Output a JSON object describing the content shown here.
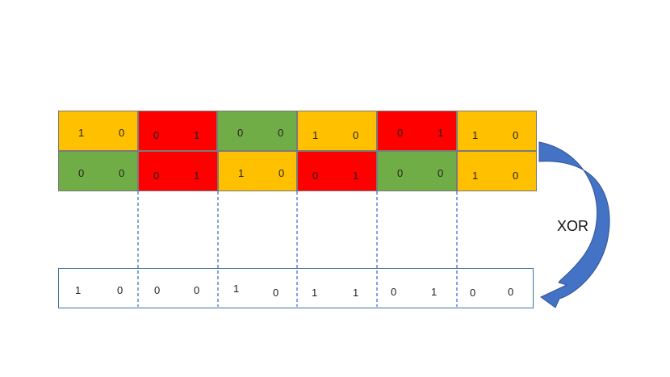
{
  "colors": {
    "yellow": "#ffc000",
    "red": "#ff0000",
    "green": "#70ad47",
    "arrow": "#4472c4",
    "dash": "#4472c4"
  },
  "row1": [
    {
      "bits": [
        "1",
        "0"
      ],
      "color": "yellow"
    },
    {
      "bits": [
        "0",
        "1"
      ],
      "color": "red"
    },
    {
      "bits": [
        "0",
        "0"
      ],
      "color": "green"
    },
    {
      "bits": [
        "1",
        "0"
      ],
      "color": "yellow"
    },
    {
      "bits": [
        "0",
        "1"
      ],
      "color": "red"
    },
    {
      "bits": [
        "1",
        "0"
      ],
      "color": "yellow"
    }
  ],
  "row2": [
    {
      "bits": [
        "0",
        "0"
      ],
      "color": "green"
    },
    {
      "bits": [
        "0",
        "1"
      ],
      "color": "red"
    },
    {
      "bits": [
        "1",
        "0"
      ],
      "color": "yellow"
    },
    {
      "bits": [
        "0",
        "1"
      ],
      "color": "red"
    },
    {
      "bits": [
        "0",
        "0"
      ],
      "color": "green"
    },
    {
      "bits": [
        "1",
        "0"
      ],
      "color": "yellow"
    }
  ],
  "result": [
    {
      "bits": [
        "1",
        "0"
      ]
    },
    {
      "bits": [
        "0",
        "0"
      ]
    },
    {
      "bits": [
        "1",
        "0"
      ]
    },
    {
      "bits": [
        "1",
        "1"
      ]
    },
    {
      "bits": [
        "0",
        "1"
      ]
    },
    {
      "bits": [
        "0",
        "0"
      ]
    }
  ],
  "operation_label": "XOR"
}
